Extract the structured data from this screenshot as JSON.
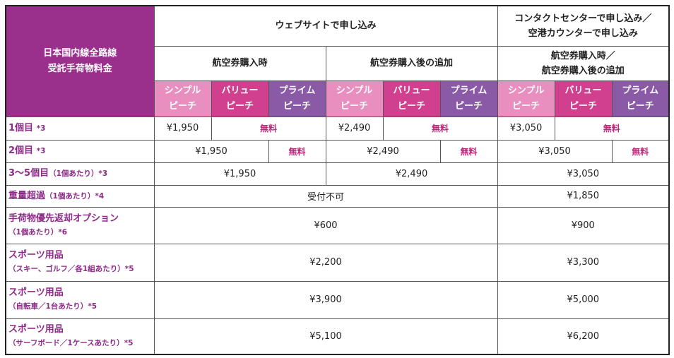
{
  "corner": {
    "line1": "日本国内線全路線",
    "line2": "受託手荷物料金"
  },
  "channels": {
    "web": "ウェブサイトで申し込み",
    "contact_line1": "コンタクトセンターで申し込み／",
    "contact_line2": "空港カウンターで申し込み"
  },
  "timing": {
    "web_purchase": "航空券購入時",
    "web_after": "航空券購入後の追加",
    "contact_line1": "航空券購入時／",
    "contact_line2": "航空券購入後の追加"
  },
  "plans": {
    "simple_1": "シンプル",
    "simple_2": "ピーチ",
    "value_1": "バリュー",
    "value_2": "ピーチ",
    "prime_1": "プライム",
    "prime_2": "ピーチ"
  },
  "free_label": "無料",
  "rows": [
    {
      "label": "1個目",
      "note": "*3",
      "p1": "¥1,950",
      "p2": "¥2,490",
      "p3": "¥3,050"
    },
    {
      "label": "2個目",
      "note": "*3",
      "p1": "¥1,950",
      "p2": "¥2,490",
      "p3": "¥3,050"
    },
    {
      "label": "3〜5個目",
      "sub": "（1個あたり）",
      "note": "*3",
      "p1": "¥1,950",
      "p2": "¥2,490",
      "p3": "¥3,050"
    },
    {
      "label": "重量超過",
      "sub": "（1個あたり）",
      "note": "*4",
      "web": "受付不可",
      "contact": "¥1,850"
    },
    {
      "label": "手荷物優先返却オプション",
      "sub": "（1個あたり）",
      "note": "*6",
      "web": "¥600",
      "contact": "¥900"
    },
    {
      "label": "スポーツ用品",
      "sub": "（スキー、ゴルフ／各1組あたり）",
      "note": "*5",
      "web": "¥2,200",
      "contact": "¥3,300"
    },
    {
      "label": "スポーツ用品",
      "sub": "（自転車／1台あたり）",
      "note": "*5",
      "web": "¥3,900",
      "contact": "¥5,000"
    },
    {
      "label": "スポーツ用品",
      "sub": "（サーフボード／1ケースあたり）",
      "note": "*5",
      "web": "¥5,100",
      "contact": "¥6,200"
    }
  ]
}
